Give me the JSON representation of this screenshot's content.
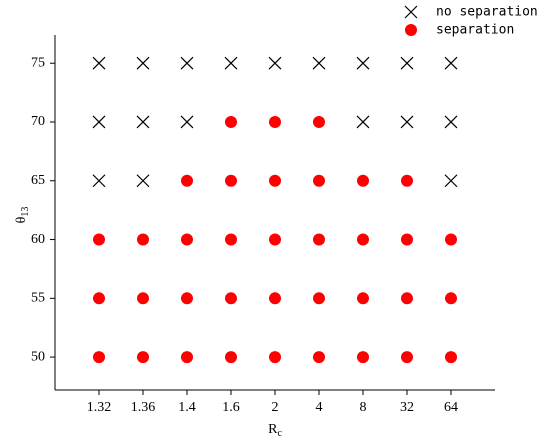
{
  "chart_data": {
    "type": "scatter",
    "x_label": {
      "text": "R",
      "subscript": "c"
    },
    "y_label": {
      "text": "θ",
      "subscript": "13"
    },
    "categories": [
      "1.32",
      "1.36",
      "1.4",
      "1.6",
      "2",
      "4",
      "8",
      "32",
      "64"
    ],
    "ylim": [
      47.2,
      77.4
    ],
    "yticks": [
      50,
      55,
      60,
      65,
      70,
      75
    ],
    "legend": "top-right",
    "series": [
      {
        "name": "no separation",
        "color": "#000000",
        "marker": "x",
        "x": [
          "1.32",
          "1.32",
          "1.32",
          "1.36",
          "1.36",
          "1.36",
          "1.4",
          "1.4",
          "1.6",
          "2",
          "4",
          "8",
          "8",
          "32",
          "32",
          "64",
          "64",
          "64"
        ],
        "values": [
          75,
          70,
          65,
          75,
          70,
          65,
          75,
          70,
          75,
          75,
          75,
          75,
          70,
          75,
          70,
          75,
          70,
          65
        ]
      },
      {
        "name": "separation",
        "color": "#ff0000",
        "marker": "o",
        "x": [
          "1.32",
          "1.32",
          "1.32",
          "1.36",
          "1.36",
          "1.36",
          "1.4",
          "1.4",
          "1.4",
          "1.4",
          "1.6",
          "1.6",
          "1.6",
          "1.6",
          "1.6",
          "2",
          "2",
          "2",
          "2",
          "2",
          "4",
          "4",
          "4",
          "4",
          "4",
          "8",
          "8",
          "8",
          "8",
          "32",
          "32",
          "32",
          "32",
          "64",
          "64",
          "64"
        ],
        "values": [
          60,
          55,
          50,
          60,
          55,
          50,
          65,
          60,
          55,
          50,
          70,
          65,
          60,
          55,
          50,
          70,
          65,
          60,
          55,
          50,
          70,
          65,
          60,
          55,
          50,
          65,
          60,
          55,
          50,
          65,
          60,
          55,
          50,
          60,
          55,
          50
        ]
      }
    ]
  }
}
